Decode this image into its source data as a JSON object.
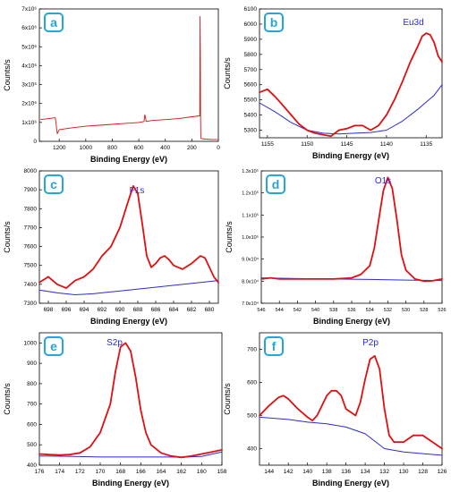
{
  "chart_data": [
    {
      "id": "a",
      "panel_label": "a",
      "type": "line",
      "title": "",
      "xlabel": "Binding Energy (eV)",
      "ylabel": "Counts/s",
      "peak_label": "",
      "x_reversed": true,
      "xlim": [
        1350,
        0
      ],
      "ylim": [
        0,
        7000000
      ],
      "x_ticks": [
        1200,
        1000,
        800,
        600,
        400,
        200,
        0
      ],
      "x_tick_labels": [
        "1200",
        "1000",
        "800",
        "600",
        "400",
        "200",
        "0"
      ],
      "y_ticks": [
        0,
        1000000,
        2000000,
        3000000,
        4000000,
        5000000,
        6000000,
        7000000
      ],
      "y_tick_labels": [
        "0",
        "1x10⁶",
        "2x10⁶",
        "3x10⁶",
        "4x10⁶",
        "5x10⁶",
        "6x10⁶",
        "7x10⁶"
      ],
      "series": [
        {
          "color": "#e01010",
          "x": [
            1340,
            1230,
            1215,
            1200,
            1100,
            1000,
            900,
            800,
            700,
            600,
            560,
            555,
            550,
            545,
            500,
            400,
            300,
            200,
            140,
            138,
            136,
            134,
            132,
            130,
            100,
            50,
            10
          ],
          "y": [
            1150000,
            1250000,
            400000,
            620000,
            720000,
            800000,
            850000,
            900000,
            950000,
            1000000,
            1050000,
            1400000,
            1300000,
            1050000,
            1100000,
            1150000,
            1200000,
            1300000,
            1350000,
            6600000,
            4600000,
            1400000,
            200000,
            150000,
            120000,
            100000,
            100000
          ]
        }
      ]
    },
    {
      "id": "b",
      "panel_label": "b",
      "type": "line",
      "title": "",
      "xlabel": "Binding Energy (eV)",
      "ylabel": "Counts/s",
      "peak_label": "Eu3d",
      "x_reversed": true,
      "xlim": [
        1156,
        1133
      ],
      "ylim": [
        5250,
        6100
      ],
      "x_ticks": [
        1155,
        1150,
        1145,
        1140,
        1135
      ],
      "x_tick_labels": [
        "1155",
        "1150",
        "1145",
        "1140",
        "1135"
      ],
      "y_ticks": [
        5300,
        5400,
        5500,
        5600,
        5700,
        5800,
        5900,
        6000,
        6100
      ],
      "y_tick_labels": [
        "5300",
        "5400",
        "5500",
        "5600",
        "5700",
        "5800",
        "5900",
        "6000",
        "6100"
      ],
      "series": [
        {
          "color": "#e01010",
          "x": [
            1156,
            1155,
            1154,
            1153,
            1152,
            1151,
            1150,
            1149,
            1148,
            1147,
            1146,
            1145,
            1144,
            1143,
            1142,
            1141,
            1140,
            1139,
            1138,
            1137,
            1136,
            1135.5,
            1135,
            1134.5,
            1134,
            1133.5,
            1133
          ],
          "y": [
            5550,
            5570,
            5520,
            5460,
            5400,
            5340,
            5300,
            5280,
            5270,
            5260,
            5300,
            5310,
            5330,
            5330,
            5300,
            5330,
            5400,
            5500,
            5620,
            5750,
            5860,
            5920,
            5940,
            5930,
            5880,
            5790,
            5750
          ]
        },
        {
          "color": "#2a2ae0",
          "x": [
            1156,
            1154,
            1152,
            1150,
            1148,
            1146,
            1144,
            1142,
            1140,
            1138,
            1136,
            1134,
            1133
          ],
          "y": [
            5480,
            5420,
            5350,
            5300,
            5280,
            5275,
            5280,
            5285,
            5300,
            5360,
            5440,
            5530,
            5600
          ]
        }
      ]
    },
    {
      "id": "c",
      "panel_label": "c",
      "type": "line",
      "title": "",
      "xlabel": "Binding Energy (eV)",
      "ylabel": "Counts/s",
      "peak_label": "F1s",
      "x_reversed": true,
      "xlim": [
        699,
        679
      ],
      "ylim": [
        7300,
        8000
      ],
      "x_ticks": [
        698,
        696,
        694,
        692,
        690,
        688,
        686,
        684,
        682,
        680
      ],
      "x_tick_labels": [
        "698",
        "696",
        "694",
        "692",
        "690",
        "688",
        "686",
        "684",
        "682",
        "680"
      ],
      "y_ticks": [
        7300,
        7400,
        7500,
        7600,
        7700,
        7800,
        7900,
        8000
      ],
      "y_tick_labels": [
        "7300",
        "7400",
        "7500",
        "7600",
        "7700",
        "7800",
        "7900",
        "8000"
      ],
      "series": [
        {
          "color": "#e01010",
          "x": [
            699,
            698,
            697,
            696,
            695,
            694,
            693,
            692,
            691,
            690,
            689,
            688.5,
            688,
            687.5,
            687,
            686.5,
            686,
            685.5,
            685,
            684.5,
            684,
            683,
            682,
            681,
            680.5,
            680,
            679.5,
            679
          ],
          "y": [
            7410,
            7440,
            7400,
            7380,
            7420,
            7440,
            7480,
            7550,
            7600,
            7700,
            7850,
            7920,
            7880,
            7720,
            7550,
            7490,
            7510,
            7540,
            7550,
            7530,
            7500,
            7480,
            7510,
            7550,
            7540,
            7490,
            7440,
            7410
          ]
        },
        {
          "color": "#2a2ae0",
          "x": [
            699,
            697,
            695,
            693,
            691,
            689,
            687,
            685,
            683,
            681,
            679
          ],
          "y": [
            7370,
            7355,
            7345,
            7350,
            7360,
            7370,
            7380,
            7390,
            7400,
            7410,
            7420
          ]
        }
      ]
    },
    {
      "id": "d",
      "panel_label": "d",
      "type": "line",
      "title": "",
      "xlabel": "Binding Energy (eV)",
      "ylabel": "Counts/s",
      "peak_label": "O1s",
      "x_reversed": true,
      "xlim": [
        546,
        526
      ],
      "ylim": [
        70000,
        130000
      ],
      "x_ticks": [
        546,
        544,
        542,
        540,
        538,
        536,
        534,
        532,
        530,
        528,
        526
      ],
      "x_tick_labels": [
        "546",
        "544",
        "542",
        "540",
        "538",
        "536",
        "534",
        "532",
        "530",
        "528",
        "526"
      ],
      "y_ticks": [
        70000,
        80000,
        90000,
        100000,
        110000,
        120000,
        130000
      ],
      "y_tick_labels": [
        "7.0x10⁴",
        "8.0x10⁴",
        "9.0x10⁴",
        "1.0x10⁵",
        "1.1x10⁵",
        "1.2x10⁵",
        "1.3x10⁵"
      ],
      "series": [
        {
          "color": "#e01010",
          "x": [
            546,
            545,
            544,
            542,
            540,
            538,
            536,
            535,
            534,
            533.5,
            533,
            532.5,
            532,
            531.5,
            531,
            530.5,
            530,
            529,
            528,
            527,
            526
          ],
          "y": [
            81000,
            81500,
            81000,
            81000,
            81000,
            81000,
            81500,
            83000,
            87000,
            95000,
            108000,
            121000,
            127000,
            122000,
            108000,
            92000,
            85000,
            81000,
            80000,
            80200,
            81000
          ]
        },
        {
          "color": "#2a2ae0",
          "x": [
            546,
            542,
            538,
            534,
            530,
            526
          ],
          "y": [
            81500,
            81200,
            81000,
            80800,
            80500,
            80300
          ]
        }
      ]
    },
    {
      "id": "e",
      "panel_label": "e",
      "type": "line",
      "title": "",
      "xlabel": "Binding Energy (eV)",
      "ylabel": "Counts/s",
      "peak_label": "S2p",
      "x_reversed": true,
      "xlim": [
        176,
        158
      ],
      "ylim": [
        400,
        1050
      ],
      "x_ticks": [
        176,
        174,
        172,
        170,
        168,
        166,
        164,
        162,
        160,
        158
      ],
      "x_tick_labels": [
        "176",
        "174",
        "172",
        "170",
        "168",
        "166",
        "164",
        "162",
        "160",
        "158"
      ],
      "y_ticks": [
        400,
        500,
        600,
        700,
        800,
        900,
        1000
      ],
      "y_tick_labels": [
        "400",
        "500",
        "600",
        "700",
        "800",
        "900",
        "1000"
      ],
      "series": [
        {
          "color": "#e01010",
          "x": [
            176,
            175,
            174,
            173,
            172,
            171,
            170,
            169,
            168.5,
            168,
            167.5,
            167,
            166.5,
            166,
            165.5,
            165,
            164,
            163,
            162,
            161,
            160,
            159,
            158
          ],
          "y": [
            455,
            452,
            450,
            452,
            460,
            490,
            560,
            700,
            860,
            980,
            1000,
            960,
            830,
            670,
            560,
            500,
            460,
            445,
            438,
            445,
            455,
            465,
            475
          ]
        },
        {
          "color": "#2a2ae0",
          "x": [
            176,
            174,
            172,
            170,
            168,
            166,
            164,
            162,
            160,
            158
          ],
          "y": [
            445,
            444,
            442,
            440,
            440,
            440,
            440,
            440,
            443,
            465
          ]
        }
      ]
    },
    {
      "id": "f",
      "panel_label": "f",
      "type": "line",
      "title": "",
      "xlabel": "Binding Energy (eV)",
      "ylabel": "Counts/s",
      "peak_label": "P2p",
      "x_reversed": true,
      "xlim": [
        145,
        126
      ],
      "ylim": [
        350,
        750
      ],
      "x_ticks": [
        144,
        142,
        140,
        138,
        136,
        134,
        132,
        130,
        128,
        126
      ],
      "x_tick_labels": [
        "144",
        "142",
        "140",
        "138",
        "136",
        "134",
        "132",
        "130",
        "128",
        "126"
      ],
      "y_ticks": [
        400,
        500,
        600,
        700
      ],
      "y_tick_labels": [
        "400",
        "500",
        "600",
        "700"
      ],
      "series": [
        {
          "color": "#e01010",
          "x": [
            145,
            144,
            143,
            142.5,
            142,
            141,
            140,
            139.5,
            139,
            138,
            137.5,
            137,
            136.5,
            136,
            135,
            134.5,
            134,
            133.5,
            133,
            132.5,
            132,
            131.5,
            131,
            130,
            129,
            128,
            127,
            126
          ],
          "y": [
            500,
            530,
            555,
            560,
            550,
            520,
            495,
            485,
            500,
            560,
            575,
            575,
            560,
            520,
            500,
            540,
            610,
            670,
            680,
            640,
            520,
            440,
            420,
            420,
            440,
            440,
            420,
            400
          ]
        },
        {
          "color": "#2a2ae0",
          "x": [
            145,
            142,
            140,
            138,
            136,
            134,
            132,
            130,
            128,
            126
          ],
          "y": [
            495,
            488,
            480,
            475,
            465,
            445,
            400,
            390,
            385,
            380
          ]
        }
      ]
    }
  ]
}
